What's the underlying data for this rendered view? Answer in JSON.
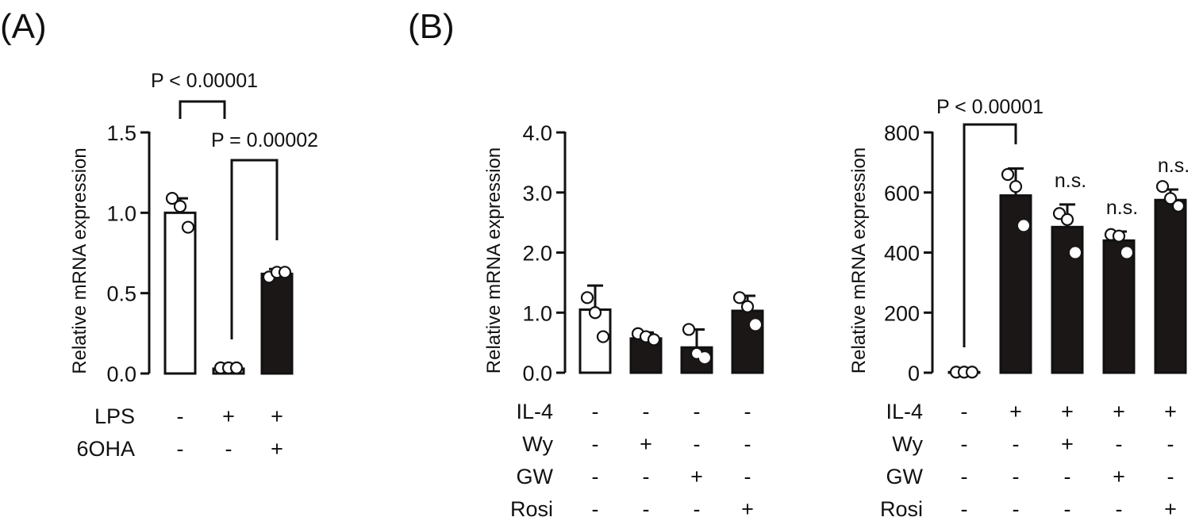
{
  "panel_labels": [
    "(A)",
    "(B)"
  ],
  "chart_data": [
    {
      "id": "A",
      "type": "bar",
      "ylabel": "Relative mRNA expression",
      "ylim": [
        0,
        1.5
      ],
      "yticks": [
        "0.0",
        "0.5",
        "1.0",
        "1.5"
      ],
      "ytick_values": [
        0,
        0.5,
        1.0,
        1.5
      ],
      "conditions": [
        {
          "name": "LPS",
          "signs": [
            "-",
            "+",
            "+"
          ]
        },
        {
          "name": "6OHA",
          "signs": [
            "-",
            "-",
            "+"
          ]
        }
      ],
      "bars": [
        {
          "value": 1.0,
          "sd": 0.09,
          "fill": "white",
          "points": [
            1.09,
            1.04,
            0.91
          ]
        },
        {
          "value": 0.03,
          "sd": 0.0,
          "fill": "white",
          "points": [
            0.035,
            0.035,
            0.035
          ]
        },
        {
          "value": 0.62,
          "sd": 0.03,
          "fill": "black",
          "points": [
            0.6,
            0.63,
            0.63
          ]
        }
      ],
      "annotations": [
        {
          "text": "P < 0.00001",
          "from": 0,
          "to": 1
        },
        {
          "text": "P = 0.00002",
          "from": 1,
          "to": 2
        }
      ]
    },
    {
      "id": "B-left",
      "type": "bar",
      "ylabel": "Relative mRNA expression",
      "ylim": [
        0,
        4.0
      ],
      "yticks": [
        "0.0",
        "1.0",
        "2.0",
        "3.0",
        "4.0"
      ],
      "ytick_values": [
        0,
        1,
        2,
        3,
        4
      ],
      "conditions": [
        {
          "name": "IL-4",
          "signs": [
            "-",
            "-",
            "-",
            "-"
          ]
        },
        {
          "name": "Wy",
          "signs": [
            "-",
            "+",
            "-",
            "-"
          ]
        },
        {
          "name": "GW",
          "signs": [
            "-",
            "-",
            "+",
            "-"
          ]
        },
        {
          "name": "Rosi",
          "signs": [
            "-",
            "-",
            "-",
            "+"
          ]
        }
      ],
      "bars": [
        {
          "value": 1.05,
          "sd": 0.4,
          "fill": "white",
          "points": [
            1.25,
            1.0,
            0.6
          ]
        },
        {
          "value": 0.57,
          "sd": 0.1,
          "fill": "black",
          "points": [
            0.65,
            0.6,
            0.55
          ]
        },
        {
          "value": 0.42,
          "sd": 0.3,
          "fill": "black",
          "points": [
            0.72,
            0.32,
            0.25
          ]
        },
        {
          "value": 1.03,
          "sd": 0.25,
          "fill": "black",
          "points": [
            1.25,
            1.1,
            0.8
          ]
        }
      ],
      "annotations": []
    },
    {
      "id": "B-right",
      "type": "bar",
      "ylabel": "Relative mRNA expression",
      "ylim": [
        0,
        800
      ],
      "yticks": [
        "0",
        "200",
        "400",
        "600",
        "800"
      ],
      "ytick_values": [
        0,
        200,
        400,
        600,
        800
      ],
      "conditions": [
        {
          "name": "IL-4",
          "signs": [
            "-",
            "+",
            "+",
            "+",
            "+"
          ]
        },
        {
          "name": "Wy",
          "signs": [
            "-",
            "-",
            "+",
            "-",
            "-"
          ]
        },
        {
          "name": "GW",
          "signs": [
            "-",
            "-",
            "-",
            "+",
            "-"
          ]
        },
        {
          "name": "Rosi",
          "signs": [
            "-",
            "-",
            "-",
            "-",
            "+"
          ]
        }
      ],
      "bars": [
        {
          "value": 2,
          "sd": 0,
          "fill": "white",
          "points": [
            2,
            2,
            2
          ]
        },
        {
          "value": 590,
          "sd": 90,
          "fill": "black",
          "points": [
            660,
            620,
            490
          ]
        },
        {
          "value": 485,
          "sd": 75,
          "fill": "black",
          "points": [
            530,
            510,
            400
          ]
        },
        {
          "value": 440,
          "sd": 30,
          "fill": "black",
          "points": [
            460,
            455,
            400
          ]
        },
        {
          "value": 575,
          "sd": 35,
          "fill": "black",
          "points": [
            620,
            580,
            555
          ]
        }
      ],
      "annotations": [
        {
          "text": "P < 0.00001",
          "from": 0,
          "to": 1
        },
        {
          "text": "n.s.",
          "bar": 2
        },
        {
          "text": "n.s.",
          "bar": 3
        },
        {
          "text": "n.s.",
          "bar": 4
        }
      ]
    }
  ]
}
